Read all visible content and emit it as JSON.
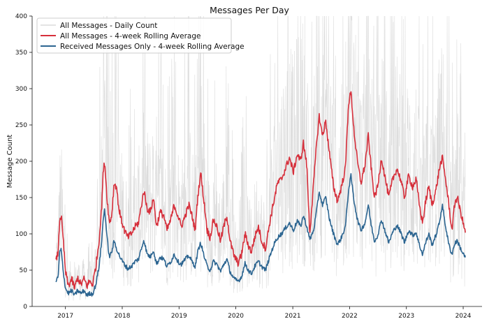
{
  "chart_data": {
    "type": "line",
    "title": "Messages Per Day",
    "xlabel": "",
    "ylabel": "Message Count",
    "ylim": [
      0,
      400
    ],
    "xlim": [
      "2016-06-01",
      "2024-05-01"
    ],
    "x_ticks": [
      "2017",
      "2018",
      "2019",
      "2020",
      "2021",
      "2022",
      "2023",
      "2024"
    ],
    "y_ticks": [
      "0",
      "50",
      "100",
      "150",
      "200",
      "250",
      "300",
      "350",
      "400"
    ],
    "grid": false,
    "legend": {
      "position": "top-left",
      "entries": [
        "All Messages - Daily Count",
        "All Messages - 4-week Rolling Average",
        "Received Messages Only - 4-week Rolling Average"
      ]
    },
    "colors": {
      "daily": "#d3d3d3",
      "all_avg": "#d62f3b",
      "received_avg": "#2c6591"
    },
    "series": [
      {
        "name": "All Messages - 4-week Rolling Average",
        "color": "#d62f3b",
        "points": [
          [
            "2016-11-01",
            62
          ],
          [
            "2016-11-15",
            75
          ],
          [
            "2016-11-25",
            120
          ],
          [
            "2016-12-05",
            125
          ],
          [
            "2016-12-20",
            85
          ],
          [
            "2017-01-01",
            48
          ],
          [
            "2017-01-20",
            28
          ],
          [
            "2017-02-10",
            38
          ],
          [
            "2017-03-01",
            25
          ],
          [
            "2017-03-20",
            40
          ],
          [
            "2017-04-10",
            30
          ],
          [
            "2017-05-01",
            38
          ],
          [
            "2017-05-20",
            28
          ],
          [
            "2017-06-05",
            35
          ],
          [
            "2017-06-25",
            30
          ],
          [
            "2017-07-15",
            55
          ],
          [
            "2017-08-05",
            90
          ],
          [
            "2017-08-20",
            130
          ],
          [
            "2017-09-01",
            185
          ],
          [
            "2017-09-10",
            200
          ],
          [
            "2017-09-25",
            150
          ],
          [
            "2017-10-10",
            115
          ],
          [
            "2017-10-25",
            125
          ],
          [
            "2017-11-10",
            170
          ],
          [
            "2017-11-25",
            165
          ],
          [
            "2017-12-10",
            135
          ],
          [
            "2017-12-25",
            120
          ],
          [
            "2018-01-15",
            105
          ],
          [
            "2018-02-05",
            95
          ],
          [
            "2018-03-01",
            100
          ],
          [
            "2018-03-25",
            110
          ],
          [
            "2018-04-15",
            115
          ],
          [
            "2018-05-05",
            140
          ],
          [
            "2018-05-20",
            160
          ],
          [
            "2018-06-10",
            135
          ],
          [
            "2018-07-01",
            130
          ],
          [
            "2018-07-20",
            150
          ],
          [
            "2018-08-10",
            110
          ],
          [
            "2018-09-01",
            130
          ],
          [
            "2018-09-25",
            125
          ],
          [
            "2018-10-15",
            105
          ],
          [
            "2018-11-10",
            120
          ],
          [
            "2018-12-01",
            140
          ],
          [
            "2018-12-25",
            125
          ],
          [
            "2019-01-15",
            110
          ],
          [
            "2019-02-10",
            125
          ],
          [
            "2019-03-05",
            140
          ],
          [
            "2019-03-25",
            125
          ],
          [
            "2019-04-15",
            105
          ],
          [
            "2019-05-01",
            150
          ],
          [
            "2019-05-20",
            185
          ],
          [
            "2019-06-10",
            145
          ],
          [
            "2019-07-01",
            105
          ],
          [
            "2019-07-20",
            95
          ],
          [
            "2019-08-10",
            120
          ],
          [
            "2019-09-01",
            110
          ],
          [
            "2019-09-25",
            90
          ],
          [
            "2019-10-15",
            110
          ],
          [
            "2019-11-05",
            125
          ],
          [
            "2019-11-25",
            90
          ],
          [
            "2019-12-20",
            70
          ],
          [
            "2020-01-15",
            60
          ],
          [
            "2020-02-05",
            70
          ],
          [
            "2020-03-01",
            100
          ],
          [
            "2020-03-20",
            85
          ],
          [
            "2020-04-10",
            75
          ],
          [
            "2020-05-01",
            95
          ],
          [
            "2020-05-25",
            110
          ],
          [
            "2020-06-15",
            90
          ],
          [
            "2020-07-10",
            80
          ],
          [
            "2020-08-05",
            115
          ],
          [
            "2020-09-01",
            145
          ],
          [
            "2020-09-25",
            170
          ],
          [
            "2020-10-20",
            175
          ],
          [
            "2020-11-15",
            190
          ],
          [
            "2020-12-10",
            205
          ],
          [
            "2021-01-05",
            185
          ],
          [
            "2021-01-30",
            210
          ],
          [
            "2021-02-20",
            200
          ],
          [
            "2021-03-10",
            225
          ],
          [
            "2021-04-01",
            195
          ],
          [
            "2021-04-20",
            100
          ],
          [
            "2021-05-15",
            170
          ],
          [
            "2021-06-05",
            230
          ],
          [
            "2021-06-20",
            262
          ],
          [
            "2021-07-10",
            235
          ],
          [
            "2021-08-01",
            255
          ],
          [
            "2021-08-25",
            210
          ],
          [
            "2021-09-20",
            165
          ],
          [
            "2021-10-15",
            145
          ],
          [
            "2021-11-10",
            165
          ],
          [
            "2021-12-05",
            190
          ],
          [
            "2021-12-25",
            280
          ],
          [
            "2022-01-10",
            295
          ],
          [
            "2022-01-30",
            240
          ],
          [
            "2022-02-20",
            200
          ],
          [
            "2022-03-15",
            170
          ],
          [
            "2022-04-10",
            195
          ],
          [
            "2022-05-01",
            235
          ],
          [
            "2022-05-20",
            190
          ],
          [
            "2022-06-10",
            150
          ],
          [
            "2022-07-01",
            165
          ],
          [
            "2022-07-25",
            205
          ],
          [
            "2022-08-15",
            180
          ],
          [
            "2022-09-10",
            150
          ],
          [
            "2022-10-05",
            175
          ],
          [
            "2022-11-01",
            190
          ],
          [
            "2022-11-25",
            175
          ],
          [
            "2022-12-20",
            150
          ],
          [
            "2023-01-15",
            180
          ],
          [
            "2023-02-10",
            165
          ],
          [
            "2023-03-05",
            175
          ],
          [
            "2023-03-25",
            140
          ],
          [
            "2023-04-15",
            115
          ],
          [
            "2023-05-05",
            145
          ],
          [
            "2023-05-25",
            165
          ],
          [
            "2023-06-15",
            140
          ],
          [
            "2023-07-10",
            160
          ],
          [
            "2023-08-01",
            190
          ],
          [
            "2023-08-20",
            205
          ],
          [
            "2023-09-10",
            175
          ],
          [
            "2023-10-01",
            140
          ],
          [
            "2023-10-20",
            105
          ],
          [
            "2023-11-10",
            145
          ],
          [
            "2023-11-25",
            150
          ],
          [
            "2023-12-15",
            130
          ],
          [
            "2024-01-01",
            115
          ],
          [
            "2024-01-15",
            100
          ]
        ]
      },
      {
        "name": "Received Messages Only - 4-week Rolling Average",
        "color": "#2c6591",
        "points": [
          [
            "2016-11-01",
            35
          ],
          [
            "2016-11-15",
            40
          ],
          [
            "2016-11-25",
            75
          ],
          [
            "2016-12-05",
            78
          ],
          [
            "2016-12-20",
            45
          ],
          [
            "2017-01-01",
            25
          ],
          [
            "2017-01-20",
            18
          ],
          [
            "2017-02-10",
            22
          ],
          [
            "2017-03-01",
            15
          ],
          [
            "2017-03-20",
            22
          ],
          [
            "2017-04-10",
            18
          ],
          [
            "2017-05-01",
            22
          ],
          [
            "2017-05-20",
            15
          ],
          [
            "2017-06-05",
            18
          ],
          [
            "2017-06-25",
            17
          ],
          [
            "2017-07-15",
            30
          ],
          [
            "2017-08-05",
            55
          ],
          [
            "2017-08-20",
            85
          ],
          [
            "2017-09-01",
            120
          ],
          [
            "2017-09-10",
            135
          ],
          [
            "2017-09-25",
            95
          ],
          [
            "2017-10-10",
            68
          ],
          [
            "2017-10-25",
            75
          ],
          [
            "2017-11-10",
            90
          ],
          [
            "2017-11-25",
            80
          ],
          [
            "2017-12-10",
            72
          ],
          [
            "2017-12-25",
            65
          ],
          [
            "2018-01-15",
            58
          ],
          [
            "2018-02-05",
            52
          ],
          [
            "2018-03-01",
            55
          ],
          [
            "2018-03-25",
            62
          ],
          [
            "2018-04-15",
            65
          ],
          [
            "2018-05-05",
            80
          ],
          [
            "2018-05-20",
            92
          ],
          [
            "2018-06-10",
            72
          ],
          [
            "2018-07-01",
            68
          ],
          [
            "2018-07-20",
            78
          ],
          [
            "2018-08-10",
            58
          ],
          [
            "2018-09-01",
            68
          ],
          [
            "2018-09-25",
            65
          ],
          [
            "2018-10-15",
            55
          ],
          [
            "2018-11-10",
            62
          ],
          [
            "2018-12-01",
            72
          ],
          [
            "2018-12-25",
            62
          ],
          [
            "2019-01-15",
            58
          ],
          [
            "2019-02-10",
            65
          ],
          [
            "2019-03-05",
            70
          ],
          [
            "2019-03-25",
            62
          ],
          [
            "2019-04-15",
            55
          ],
          [
            "2019-05-01",
            75
          ],
          [
            "2019-05-20",
            88
          ],
          [
            "2019-06-10",
            70
          ],
          [
            "2019-07-01",
            55
          ],
          [
            "2019-07-20",
            50
          ],
          [
            "2019-08-10",
            62
          ],
          [
            "2019-09-01",
            58
          ],
          [
            "2019-09-25",
            48
          ],
          [
            "2019-10-15",
            58
          ],
          [
            "2019-11-05",
            65
          ],
          [
            "2019-11-25",
            48
          ],
          [
            "2019-12-20",
            38
          ],
          [
            "2020-01-15",
            35
          ],
          [
            "2020-02-05",
            40
          ],
          [
            "2020-03-01",
            60
          ],
          [
            "2020-03-20",
            50
          ],
          [
            "2020-04-10",
            45
          ],
          [
            "2020-05-01",
            55
          ],
          [
            "2020-05-25",
            62
          ],
          [
            "2020-06-15",
            55
          ],
          [
            "2020-07-10",
            50
          ],
          [
            "2020-08-05",
            68
          ],
          [
            "2020-09-01",
            85
          ],
          [
            "2020-09-25",
            95
          ],
          [
            "2020-10-20",
            100
          ],
          [
            "2020-11-15",
            108
          ],
          [
            "2020-12-10",
            115
          ],
          [
            "2021-01-05",
            105
          ],
          [
            "2021-01-30",
            118
          ],
          [
            "2021-02-20",
            110
          ],
          [
            "2021-03-10",
            125
          ],
          [
            "2021-04-01",
            110
          ],
          [
            "2021-04-20",
            92
          ],
          [
            "2021-05-15",
            105
          ],
          [
            "2021-06-05",
            135
          ],
          [
            "2021-06-20",
            158
          ],
          [
            "2021-07-10",
            140
          ],
          [
            "2021-08-01",
            150
          ],
          [
            "2021-08-25",
            120
          ],
          [
            "2021-09-20",
            100
          ],
          [
            "2021-10-15",
            85
          ],
          [
            "2021-11-10",
            95
          ],
          [
            "2021-12-05",
            110
          ],
          [
            "2021-12-25",
            160
          ],
          [
            "2022-01-10",
            180
          ],
          [
            "2022-01-30",
            145
          ],
          [
            "2022-02-20",
            120
          ],
          [
            "2022-03-15",
            105
          ],
          [
            "2022-04-10",
            115
          ],
          [
            "2022-05-01",
            140
          ],
          [
            "2022-05-20",
            112
          ],
          [
            "2022-06-10",
            90
          ],
          [
            "2022-07-01",
            98
          ],
          [
            "2022-07-25",
            120
          ],
          [
            "2022-08-15",
            105
          ],
          [
            "2022-09-10",
            88
          ],
          [
            "2022-10-05",
            102
          ],
          [
            "2022-11-01",
            112
          ],
          [
            "2022-11-25",
            102
          ],
          [
            "2022-12-20",
            88
          ],
          [
            "2023-01-15",
            105
          ],
          [
            "2023-02-10",
            98
          ],
          [
            "2023-03-05",
            102
          ],
          [
            "2023-03-25",
            85
          ],
          [
            "2023-04-15",
            72
          ],
          [
            "2023-05-05",
            88
          ],
          [
            "2023-05-25",
            100
          ],
          [
            "2023-06-15",
            85
          ],
          [
            "2023-07-10",
            98
          ],
          [
            "2023-08-01",
            115
          ],
          [
            "2023-08-20",
            140
          ],
          [
            "2023-09-10",
            110
          ],
          [
            "2023-10-01",
            85
          ],
          [
            "2023-10-20",
            72
          ],
          [
            "2023-11-10",
            88
          ],
          [
            "2023-11-25",
            90
          ],
          [
            "2023-12-15",
            80
          ],
          [
            "2024-01-01",
            72
          ],
          [
            "2024-01-15",
            68
          ]
        ]
      }
    ],
    "daily_series": {
      "name": "All Messages - Daily Count",
      "color": "#d3d3d3",
      "start": "2016-11-01",
      "end": "2024-01-15",
      "note": "daily values fluctuate widely around the rolling average, spanning roughly 0 to 400"
    }
  }
}
